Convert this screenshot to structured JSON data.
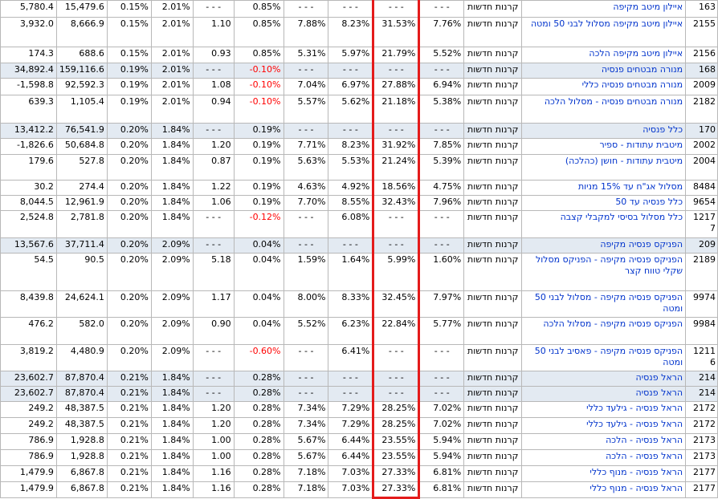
{
  "columns": [
    "total_assets",
    "fund_assets",
    "mgmt_fee_deposit",
    "mgmt_fee_balance",
    "sharpe",
    "month_return",
    "ytd_return",
    "return_3y",
    "return_5y",
    "avg_return",
    "type",
    "fund_name",
    "fund_id"
  ],
  "highlight": {
    "column": "return_5y",
    "color": "#e41b1b"
  },
  "rows": [
    {
      "group": false,
      "h": 21,
      "cells": [
        "5,780.4",
        "15,479.6",
        "0.15%",
        "2.01%",
        "- - -",
        "0.85%",
        "- - -",
        "- - -",
        "- - -",
        "- - -",
        "קרנות חדשות",
        "איילון מיטב מקיפה",
        "163"
      ],
      "neg": false
    },
    {
      "group": false,
      "h": 37,
      "cells": [
        "3,932.0",
        "8,666.9",
        "0.15%",
        "2.01%",
        "1.10",
        "0.85%",
        "7.88%",
        "8.23%",
        "31.53%",
        "7.76%",
        "קרנות חדשות",
        "איילון מיטב מקיפה מסלול לבני 50 ומטה",
        "2155"
      ],
      "neg": false
    },
    {
      "group": false,
      "h": 20,
      "cells": [
        "174.3",
        "688.6",
        "0.15%",
        "2.01%",
        "0.93",
        "0.85%",
        "5.31%",
        "5.97%",
        "21.79%",
        "5.52%",
        "קרנות חדשות",
        "איילון מיטב מקיפה הלכה",
        "2156"
      ],
      "neg": false
    },
    {
      "group": true,
      "h": 19,
      "cells": [
        "34,892.4",
        "159,116.6",
        "0.19%",
        "2.01%",
        "- - -",
        "-0.10%",
        "- - -",
        "- - -",
        "- - -",
        "- - -",
        "קרנות חדשות",
        "מנורה מבטחים פנסיה",
        "168"
      ],
      "neg": true
    },
    {
      "group": false,
      "h": 21,
      "cells": [
        "-1,598.8",
        "92,592.3",
        "0.19%",
        "2.01%",
        "1.08",
        "-0.10%",
        "7.04%",
        "6.97%",
        "27.88%",
        "6.94%",
        "קרנות חדשות",
        "מנורה מבטחים פנסיה כללי",
        "2009"
      ],
      "neg": true
    },
    {
      "group": false,
      "h": 35,
      "cells": [
        "639.3",
        "1,105.4",
        "0.19%",
        "2.01%",
        "0.94",
        "-0.10%",
        "5.57%",
        "5.62%",
        "21.18%",
        "5.38%",
        "קרנות חדשות",
        "מנורה מבטחים פנסיה - מסלול הלכה",
        "2182"
      ],
      "neg": true
    },
    {
      "group": true,
      "h": 19,
      "cells": [
        "13,412.2",
        "76,541.9",
        "0.20%",
        "1.84%",
        "- - -",
        "0.19%",
        "- - -",
        "- - -",
        "- - -",
        "- - -",
        "קרנות חדשות",
        "כלל פנסיה",
        "170"
      ],
      "neg": false
    },
    {
      "group": false,
      "h": 20,
      "cells": [
        "-1,826.6",
        "50,684.8",
        "0.20%",
        "1.84%",
        "1.20",
        "0.19%",
        "7.71%",
        "8.23%",
        "31.92%",
        "7.85%",
        "קרנות חדשות",
        "מיטבית עתודות - ספיר",
        "2002"
      ],
      "neg": false
    },
    {
      "group": false,
      "h": 32,
      "cells": [
        "179.6",
        "527.8",
        "0.20%",
        "1.84%",
        "0.87",
        "0.19%",
        "5.63%",
        "5.53%",
        "21.24%",
        "5.39%",
        "קרנות חדשות",
        "מיטבית עתודות - חושן (כהלכה)",
        "2004"
      ],
      "neg": false
    },
    {
      "group": false,
      "h": 19,
      "cells": [
        "30.2",
        "274.4",
        "0.20%",
        "1.84%",
        "1.22",
        "0.19%",
        "4.63%",
        "4.92%",
        "18.56%",
        "4.75%",
        "קרנות חדשות",
        "מסלול אג\"ח עד 15% מניות",
        "8484"
      ],
      "neg": false
    },
    {
      "group": false,
      "h": 19,
      "cells": [
        "8,044.5",
        "12,961.9",
        "0.20%",
        "1.84%",
        "1.06",
        "0.19%",
        "7.70%",
        "8.55%",
        "32.43%",
        "7.96%",
        "קרנות חדשות",
        "כלל פנסיה עד 50",
        "9654"
      ],
      "neg": false
    },
    {
      "group": false,
      "h": 34,
      "cells": [
        "2,524.8",
        "2,781.8",
        "0.20%",
        "1.84%",
        "- - -",
        "-0.12%",
        "- - -",
        "6.08%",
        "- - -",
        "- - -",
        "קרנות חדשות",
        "כלל מסלול בסיסי למקבלי קצבה",
        "1217 7"
      ],
      "neg": true
    },
    {
      "group": true,
      "h": 19,
      "cells": [
        "13,567.6",
        "37,711.4",
        "0.20%",
        "2.09%",
        "- - -",
        "0.04%",
        "- - -",
        "- - -",
        "- - -",
        "- - -",
        "קרנות חדשות",
        "הפניקס פנסיה מקיפה",
        "209"
      ],
      "neg": false
    },
    {
      "group": false,
      "h": 47,
      "cells": [
        "54.5",
        "90.5",
        "0.20%",
        "2.09%",
        "5.18",
        "0.04%",
        "1.59%",
        "1.64%",
        "5.99%",
        "1.60%",
        "קרנות חדשות",
        "הפניקס פנסיה מקיפה - הפניקס מסלול שקלי טווח קצר",
        "2189"
      ],
      "neg": false
    },
    {
      "group": false,
      "h": 33,
      "cells": [
        "8,439.8",
        "24,624.1",
        "0.20%",
        "2.09%",
        "1.17",
        "0.04%",
        "8.00%",
        "8.33%",
        "32.45%",
        "7.97%",
        "קרנות חדשות",
        "הפניקס פנסיה מקיפה - מסלול לבני 50 ומטה",
        "9974"
      ],
      "neg": false
    },
    {
      "group": false,
      "h": 34,
      "cells": [
        "476.2",
        "582.0",
        "0.20%",
        "2.09%",
        "0.90",
        "0.04%",
        "5.52%",
        "6.23%",
        "22.84%",
        "5.77%",
        "קרנות חדשות",
        "הפניקס פנסיה מקיפה - מסלול הלכה",
        "9984"
      ],
      "neg": false
    },
    {
      "group": false,
      "h": 33,
      "cells": [
        "3,819.2",
        "4,480.9",
        "0.20%",
        "2.09%",
        "- - -",
        "-0.60%",
        "- - -",
        "6.41%",
        "- - -",
        "- - -",
        "קרנות חדשות",
        "הפניקס פנסיה מקיפה - פאסיב לבני 50 ומטה",
        "1211 6"
      ],
      "neg": true
    },
    {
      "group": true,
      "h": 19,
      "cells": [
        "23,602.7",
        "87,870.4",
        "0.21%",
        "1.84%",
        "- - -",
        "0.28%",
        "- - -",
        "- - -",
        "- - -",
        "- - -",
        "קרנות חדשות",
        "הראל פנסיה",
        "214"
      ],
      "neg": false
    },
    {
      "group": true,
      "h": 19,
      "cells": [
        "23,602.7",
        "87,870.4",
        "0.21%",
        "1.84%",
        "- - -",
        "0.28%",
        "- - -",
        "- - -",
        "- - -",
        "- - -",
        "קרנות חדשות",
        "הראל פנסיה",
        "214"
      ],
      "neg": false
    },
    {
      "group": false,
      "h": 20,
      "cells": [
        "249.2",
        "48,387.5",
        "0.21%",
        "1.84%",
        "1.20",
        "0.28%",
        "7.34%",
        "7.29%",
        "28.25%",
        "7.02%",
        "קרנות חדשות",
        "הראל פנסיה - גילעד כללי",
        "2172"
      ],
      "neg": false
    },
    {
      "group": false,
      "h": 20,
      "cells": [
        "249.2",
        "48,387.5",
        "0.21%",
        "1.84%",
        "1.20",
        "0.28%",
        "7.34%",
        "7.29%",
        "28.25%",
        "7.02%",
        "קרנות חדשות",
        "הראל פנסיה - גילעד כללי",
        "2172"
      ],
      "neg": false
    },
    {
      "group": false,
      "h": 20,
      "cells": [
        "786.9",
        "1,928.8",
        "0.21%",
        "1.84%",
        "1.00",
        "0.28%",
        "5.67%",
        "6.44%",
        "23.55%",
        "5.94%",
        "קרנות חדשות",
        "הראל פנסיה - הלכה",
        "2173"
      ],
      "neg": false
    },
    {
      "group": false,
      "h": 20,
      "cells": [
        "786.9",
        "1,928.8",
        "0.21%",
        "1.84%",
        "1.00",
        "0.28%",
        "5.67%",
        "6.44%",
        "23.55%",
        "5.94%",
        "קרנות חדשות",
        "הראל פנסיה - הלכה",
        "2173"
      ],
      "neg": false
    },
    {
      "group": false,
      "h": 20,
      "cells": [
        "1,479.9",
        "6,867.8",
        "0.21%",
        "1.84%",
        "1.16",
        "0.28%",
        "7.18%",
        "7.03%",
        "27.33%",
        "6.81%",
        "קרנות חדשות",
        "הראל פנסיה - מנוף כללי",
        "2177"
      ],
      "neg": false
    },
    {
      "group": false,
      "h": 20,
      "cells": [
        "1,479.9",
        "6,867.8",
        "0.21%",
        "1.84%",
        "1.16",
        "0.28%",
        "7.18%",
        "7.03%",
        "27.33%",
        "6.81%",
        "קרנות חדשות",
        "הראל פנסיה - מנוף כללי",
        "2177"
      ],
      "neg": false
    }
  ]
}
